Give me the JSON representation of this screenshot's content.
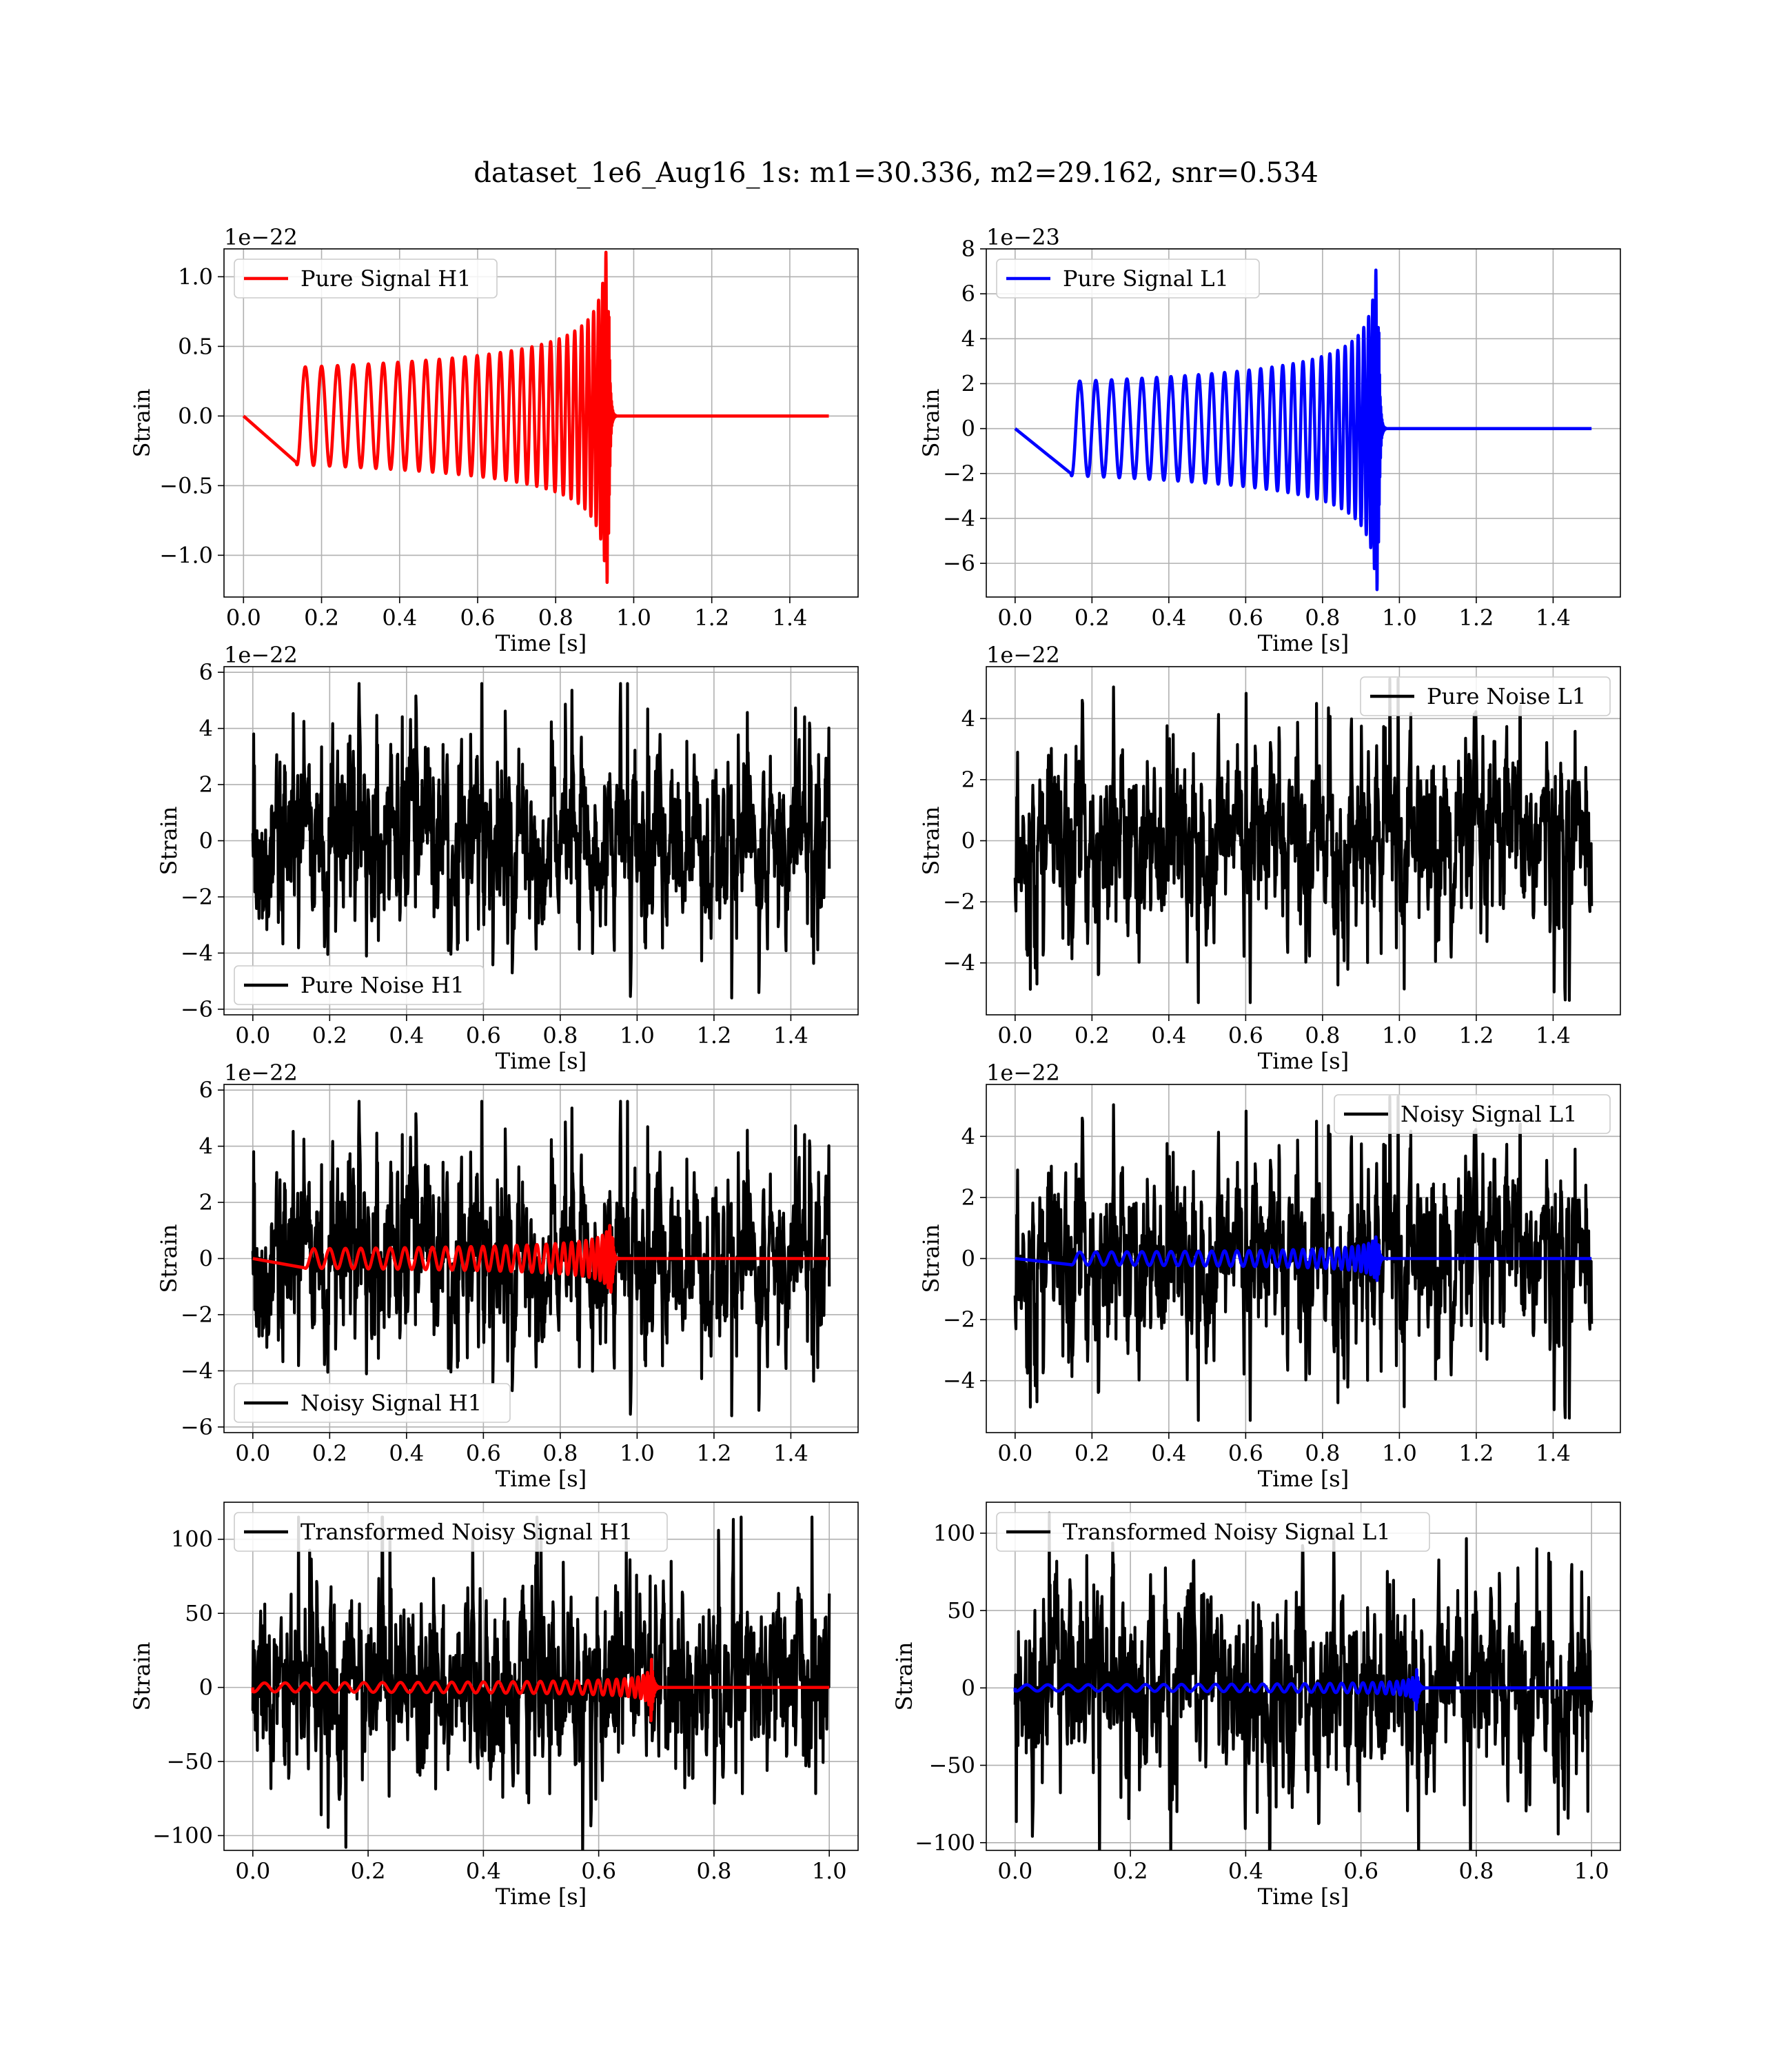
{
  "figure_title": "dataset_1e6_Aug16_1s: m1=30.336, m2=29.162, snr=0.534",
  "colors": {
    "h1_signal": "#ff0000",
    "l1_signal": "#0000ff",
    "noise": "#000000",
    "grid": "#b0b0b0"
  },
  "chart_data": [
    {
      "id": "pure-signal-h1",
      "type": "line",
      "xlabel": "Time [s]",
      "ylabel": "Strain",
      "offset_text": "1e−22",
      "xlim": [
        -0.05,
        1.575
      ],
      "ylim": [
        -1.3,
        1.2
      ],
      "xticks": [
        0.0,
        0.2,
        0.4,
        0.6,
        0.8,
        1.0,
        1.2,
        1.4
      ],
      "xtick_labels": [
        "0.0",
        "0.2",
        "0.4",
        "0.6",
        "0.8",
        "1.0",
        "1.2",
        "1.4"
      ],
      "yticks": [
        -1.0,
        -0.5,
        0.0,
        0.5,
        1.0
      ],
      "ytick_labels": [
        "−1.0",
        "−0.5",
        "0.0",
        "0.5",
        "1.0"
      ],
      "legend_position": "upper-left",
      "grid": true,
      "series": [
        {
          "name": "Pure Signal H1",
          "color": "#ff0000",
          "kind": "chirp",
          "t_start": 0.135,
          "t_merge": 0.935,
          "t_end": 1.5,
          "amp_start": 0.35,
          "amp_peak": 1.2,
          "cycles": 30
        }
      ]
    },
    {
      "id": "pure-signal-l1",
      "type": "line",
      "xlabel": "Time [s]",
      "ylabel": "Strain",
      "offset_text": "1e−23",
      "xlim": [
        -0.075,
        1.575
      ],
      "ylim": [
        -7.5,
        8.0
      ],
      "xticks": [
        0.0,
        0.2,
        0.4,
        0.6,
        0.8,
        1.0,
        1.2,
        1.4
      ],
      "xtick_labels": [
        "0.0",
        "0.2",
        "0.4",
        "0.6",
        "0.8",
        "1.0",
        "1.2",
        "1.4"
      ],
      "yticks": [
        -6,
        -4,
        -2,
        0,
        2,
        4,
        6,
        8
      ],
      "ytick_labels": [
        "−6",
        "−4",
        "−2",
        "0",
        "2",
        "4",
        "6",
        "8"
      ],
      "legend_position": "upper-left",
      "grid": true,
      "series": [
        {
          "name": "Pure Signal L1",
          "color": "#0000ff",
          "kind": "chirp",
          "t_start": 0.145,
          "t_merge": 0.945,
          "t_end": 1.5,
          "amp_start": 2.1,
          "amp_peak": 7.2,
          "cycles": 30
        }
      ]
    },
    {
      "id": "pure-noise-h1",
      "type": "line",
      "xlabel": "Time [s]",
      "ylabel": "Strain",
      "offset_text": "1e−22",
      "xlim": [
        -0.075,
        1.575
      ],
      "ylim": [
        -6.2,
        6.2
      ],
      "xticks": [
        0.0,
        0.2,
        0.4,
        0.6,
        0.8,
        1.0,
        1.2,
        1.4
      ],
      "xtick_labels": [
        "0.0",
        "0.2",
        "0.4",
        "0.6",
        "0.8",
        "1.0",
        "1.2",
        "1.4"
      ],
      "yticks": [
        -6,
        -4,
        -2,
        0,
        2,
        4,
        6
      ],
      "ytick_labels": [
        "−6",
        "−4",
        "−2",
        "0",
        "2",
        "4",
        "6"
      ],
      "legend_position": "lower-left",
      "grid": true,
      "series": [
        {
          "name": "Pure Noise H1",
          "color": "#000000",
          "kind": "noise",
          "t_start": 0.0,
          "t_end": 1.5,
          "amp": 1.6,
          "max": 5.6,
          "seed": 11
        }
      ]
    },
    {
      "id": "pure-noise-l1",
      "type": "line",
      "xlabel": "Time [s]",
      "ylabel": "Strain",
      "offset_text": "1e−22",
      "xlim": [
        -0.075,
        1.575
      ],
      "ylim": [
        -5.7,
        5.7
      ],
      "xticks": [
        0.0,
        0.2,
        0.4,
        0.6,
        0.8,
        1.0,
        1.2,
        1.4
      ],
      "xtick_labels": [
        "0.0",
        "0.2",
        "0.4",
        "0.6",
        "0.8",
        "1.0",
        "1.2",
        "1.4"
      ],
      "yticks": [
        -4,
        -2,
        0,
        2,
        4
      ],
      "ytick_labels": [
        "−4",
        "−2",
        "0",
        "2",
        "4"
      ],
      "legend_position": "upper-right",
      "grid": true,
      "series": [
        {
          "name": "Pure Noise L1",
          "color": "#000000",
          "kind": "noise",
          "t_start": 0.0,
          "t_end": 1.5,
          "amp": 1.5,
          "max": 5.3,
          "seed": 23
        }
      ]
    },
    {
      "id": "noisy-signal-h1",
      "type": "line",
      "xlabel": "Time [s]",
      "ylabel": "Strain",
      "offset_text": "1e−22",
      "xlim": [
        -0.075,
        1.575
      ],
      "ylim": [
        -6.2,
        6.2
      ],
      "xticks": [
        0.0,
        0.2,
        0.4,
        0.6,
        0.8,
        1.0,
        1.2,
        1.4
      ],
      "xtick_labels": [
        "0.0",
        "0.2",
        "0.4",
        "0.6",
        "0.8",
        "1.0",
        "1.2",
        "1.4"
      ],
      "yticks": [
        -6,
        -4,
        -2,
        0,
        2,
        4,
        6
      ],
      "ytick_labels": [
        "−6",
        "−4",
        "−2",
        "0",
        "2",
        "4",
        "6"
      ],
      "legend_position": "lower-left",
      "grid": true,
      "series": [
        {
          "name": "Noisy Signal H1",
          "color": "#000000",
          "kind": "noise",
          "t_start": 0.0,
          "t_end": 1.5,
          "amp": 1.6,
          "max": 5.6,
          "seed": 11
        },
        {
          "color": "#ff0000",
          "kind": "chirp",
          "t_start": 0.135,
          "t_merge": 0.935,
          "t_end": 1.5,
          "amp_start": 0.35,
          "amp_peak": 1.2,
          "cycles": 30
        }
      ]
    },
    {
      "id": "noisy-signal-l1",
      "type": "line",
      "xlabel": "Time [s]",
      "ylabel": "Strain",
      "offset_text": "1e−22",
      "xlim": [
        -0.075,
        1.575
      ],
      "ylim": [
        -5.7,
        5.7
      ],
      "xticks": [
        0.0,
        0.2,
        0.4,
        0.6,
        0.8,
        1.0,
        1.2,
        1.4
      ],
      "xtick_labels": [
        "0.0",
        "0.2",
        "0.4",
        "0.6",
        "0.8",
        "1.0",
        "1.2",
        "1.4"
      ],
      "yticks": [
        -4,
        -2,
        0,
        2,
        4
      ],
      "ytick_labels": [
        "−4",
        "−2",
        "0",
        "2",
        "4"
      ],
      "legend_position": "upper-right",
      "grid": true,
      "series": [
        {
          "name": "Noisy Signal L1",
          "color": "#000000",
          "kind": "noise",
          "t_start": 0.0,
          "t_end": 1.5,
          "amp": 1.5,
          "max": 5.3,
          "seed": 23
        },
        {
          "color": "#0000ff",
          "kind": "chirp",
          "t_start": 0.145,
          "t_merge": 0.945,
          "t_end": 1.5,
          "amp_start": 0.21,
          "amp_peak": 0.72,
          "cycles": 30
        }
      ]
    },
    {
      "id": "transformed-noisy-signal-h1",
      "type": "line",
      "xlabel": "Time [s]",
      "ylabel": "Strain",
      "offset_text": "",
      "xlim": [
        -0.05,
        1.05
      ],
      "ylim": [
        -110,
        125
      ],
      "xticks": [
        0.0,
        0.2,
        0.4,
        0.6,
        0.8,
        1.0
      ],
      "xtick_labels": [
        "0.0",
        "0.2",
        "0.4",
        "0.6",
        "0.8",
        "1.0"
      ],
      "yticks": [
        -100,
        -50,
        0,
        50,
        100
      ],
      "ytick_labels": [
        "−100",
        "−50",
        "0",
        "50",
        "100"
      ],
      "legend_position": "upper-left",
      "grid": true,
      "series": [
        {
          "name": "Transformed Noisy Signal H1",
          "color": "#000000",
          "kind": "noise",
          "t_start": 0.0,
          "t_end": 1.0,
          "amp": 30,
          "max": 115,
          "seed": 37
        },
        {
          "color": "#ff0000",
          "kind": "chirp",
          "t_start": 0.0,
          "t_merge": 0.69,
          "t_end": 1.0,
          "amp_start": 3,
          "amp_peak": 32,
          "cycles": 30
        }
      ]
    },
    {
      "id": "transformed-noisy-signal-l1",
      "type": "line",
      "xlabel": "Time [s]",
      "ylabel": "Strain",
      "offset_text": "",
      "xlim": [
        -0.05,
        1.05
      ],
      "ylim": [
        -105,
        120
      ],
      "xticks": [
        0.0,
        0.2,
        0.4,
        0.6,
        0.8,
        1.0
      ],
      "xtick_labels": [
        "0.0",
        "0.2",
        "0.4",
        "0.6",
        "0.8",
        "1.0"
      ],
      "yticks": [
        -100,
        -50,
        0,
        50,
        100
      ],
      "ytick_labels": [
        "−100",
        "−50",
        "0",
        "50",
        "100"
      ],
      "legend_position": "upper-left",
      "grid": true,
      "series": [
        {
          "name": "Transformed Noisy Signal L1",
          "color": "#000000",
          "kind": "noise",
          "t_start": 0.0,
          "t_end": 1.0,
          "amp": 30,
          "max": 113,
          "seed": 41
        },
        {
          "color": "#0000ff",
          "kind": "chirp",
          "t_start": 0.0,
          "t_merge": 0.695,
          "t_end": 1.0,
          "amp_start": 2,
          "amp_peak": 20,
          "cycles": 30
        }
      ]
    }
  ]
}
